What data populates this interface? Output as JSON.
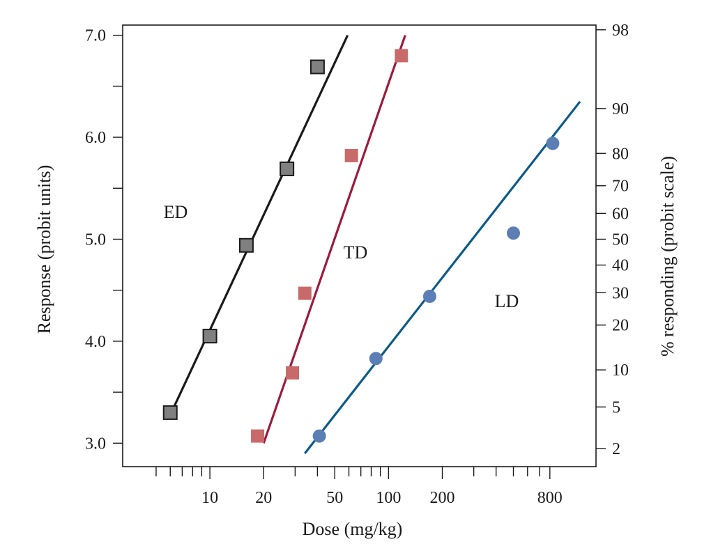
{
  "chart_data": {
    "type": "scatter",
    "xlabel": "Dose (mg/kg)",
    "ylabel": "Response (probit units)",
    "y2label": "% responding (probit scale)",
    "x_scale": "log",
    "xlim": [
      3.25,
      1450
    ],
    "ylim": [
      2.77,
      7.1
    ],
    "x_ticks": [
      10,
      20,
      50,
      100,
      200,
      800
    ],
    "x_tick_labels": [
      "10",
      "20",
      "50",
      "100",
      "200",
      "800"
    ],
    "x_minor_ticks": [
      5,
      6,
      7,
      8,
      9,
      30,
      40,
      60,
      70,
      80,
      90,
      300,
      400,
      500,
      600,
      700
    ],
    "y_ticks": [
      3.0,
      4.0,
      5.0,
      6.0,
      7.0
    ],
    "y_tick_labels": [
      "3.0",
      "4.0",
      "5.0",
      "6.0",
      "7.0"
    ],
    "y_minor_ticks": [
      3.5,
      4.5,
      5.5,
      6.5
    ],
    "y2_ticks": [
      2,
      5,
      10,
      20,
      30,
      40,
      50,
      60,
      70,
      80,
      90,
      98
    ],
    "y2_tick_labels": [
      "2",
      "5",
      "10",
      "20",
      "30",
      "40",
      "50",
      "60",
      "70",
      "80",
      "90",
      "98"
    ],
    "grid": false,
    "series": [
      {
        "name": "ED",
        "marker": "square",
        "color": "#808080",
        "edge_color": "#1a1a1a",
        "line_color": "#1a1a1a",
        "x": [
          6,
          10,
          16,
          27,
          40
        ],
        "y": [
          3.3,
          4.05,
          4.94,
          5.69,
          6.69
        ],
        "fit_x": [
          5.9,
          59
        ],
        "fit_y": [
          3.25,
          7.0
        ]
      },
      {
        "name": "TD",
        "marker": "square",
        "color": "#c96a6a",
        "line_color": "#9b1b3c",
        "x": [
          18.5,
          29,
          34,
          62,
          118
        ],
        "y": [
          3.07,
          3.69,
          4.47,
          5.82,
          6.8
        ],
        "fit_x": [
          20,
          124
        ],
        "fit_y": [
          3.0,
          7.0
        ]
      },
      {
        "name": "LD",
        "marker": "circle",
        "color": "#5b7fb5",
        "line_color": "#0b5a8a",
        "x": [
          41,
          85,
          170,
          500,
          830
        ],
        "y": [
          3.07,
          3.83,
          4.44,
          5.06,
          5.94
        ],
        "fit_x": [
          34,
          1180
        ],
        "fit_y": [
          2.9,
          6.35
        ]
      }
    ]
  }
}
